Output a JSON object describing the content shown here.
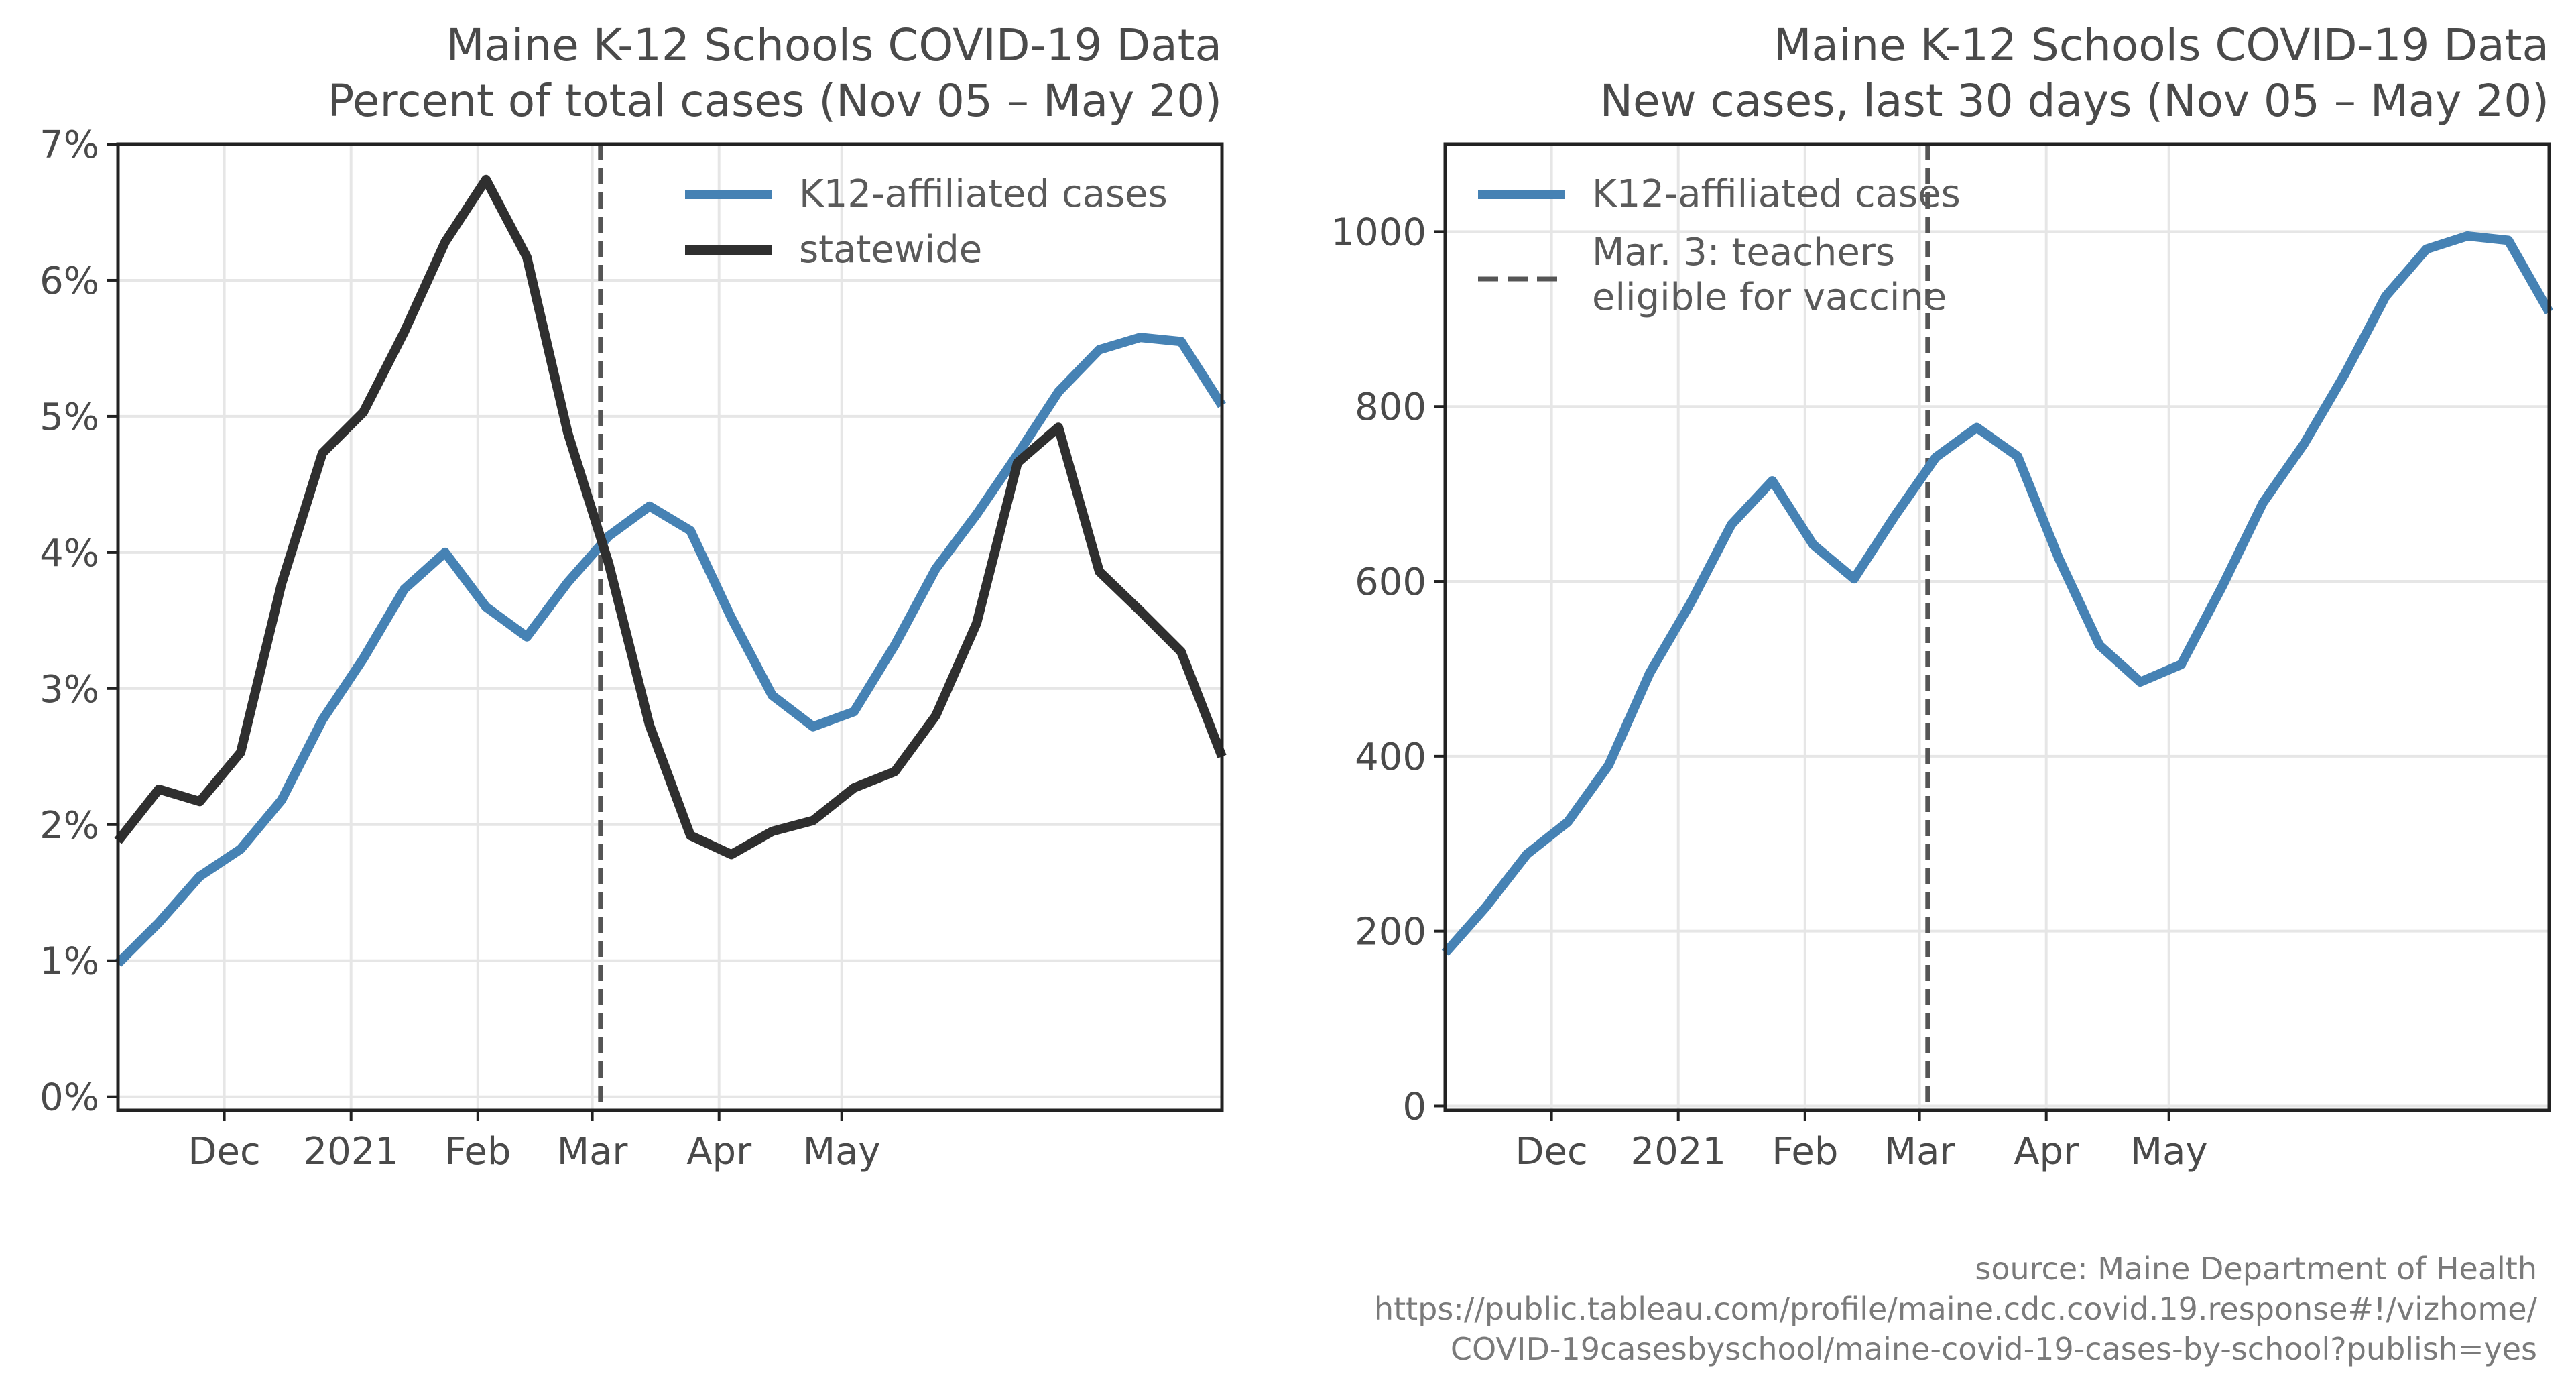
{
  "chart_data": [
    {
      "type": "line",
      "title": "Maine K-12 Schools COVID-19 Data",
      "subtitle": "Percent of total cases (Nov 05 – May 20)",
      "xlabel": "",
      "ylabel": "",
      "x_ticks": [
        "Dec",
        "2021",
        "Feb",
        "Mar",
        "Apr",
        "May"
      ],
      "y_ticks": [
        "0%",
        "1%",
        "2%",
        "3%",
        "4%",
        "5%",
        "6%",
        "7%"
      ],
      "ylim": [
        -0.1,
        7.0
      ],
      "grid": true,
      "legend_position": "top-right",
      "reference_line": {
        "date": "2021-03-03"
      },
      "series": [
        {
          "name": "K12-affiliated cases",
          "color": "#4682b4",
          "points": [
            [
              "2020-11-05",
              0.98
            ],
            [
              "2020-11-15",
              1.28
            ],
            [
              "2020-11-25",
              1.62
            ],
            [
              "2020-12-05",
              1.82
            ],
            [
              "2020-12-15",
              2.18
            ],
            [
              "2020-12-25",
              2.77
            ],
            [
              "2021-01-04",
              3.22
            ],
            [
              "2021-01-14",
              3.73
            ],
            [
              "2021-01-24",
              4.0
            ],
            [
              "2021-02-03",
              3.6
            ],
            [
              "2021-02-13",
              3.38
            ],
            [
              "2021-02-23",
              3.78
            ],
            [
              "2021-03-05",
              4.12
            ],
            [
              "2021-03-15",
              4.34
            ],
            [
              "2021-03-25",
              4.16
            ],
            [
              "2021-04-04",
              3.52
            ],
            [
              "2021-04-14",
              2.95
            ],
            [
              "2021-04-24",
              2.72
            ],
            [
              "2021-05-04",
              2.83
            ],
            [
              "2021-05-14",
              3.32
            ],
            [
              "2021-05-24",
              3.88
            ],
            [
              "2021-06-03",
              4.28
            ],
            [
              "2021-06-13",
              4.72
            ],
            [
              "2021-06-23",
              5.18
            ],
            [
              "2021-07-03",
              5.49
            ],
            [
              "2021-07-13",
              5.58
            ],
            [
              "2021-07-23",
              5.55
            ],
            [
              "2021-08-02",
              5.08
            ]
          ]
        },
        {
          "name": "statewide",
          "color": "#2f2f2f",
          "points": [
            [
              "2020-11-05",
              1.88
            ],
            [
              "2020-11-15",
              2.26
            ],
            [
              "2020-11-25",
              2.17
            ],
            [
              "2020-12-05",
              2.53
            ],
            [
              "2020-12-15",
              3.77
            ],
            [
              "2020-12-25",
              4.73
            ],
            [
              "2021-01-04",
              5.03
            ],
            [
              "2021-01-14",
              5.62
            ],
            [
              "2021-01-24",
              6.28
            ],
            [
              "2021-02-03",
              6.74
            ],
            [
              "2021-02-13",
              6.17
            ],
            [
              "2021-02-23",
              4.88
            ],
            [
              "2021-03-05",
              3.92
            ],
            [
              "2021-03-15",
              2.73
            ],
            [
              "2021-03-25",
              1.92
            ],
            [
              "2021-04-04",
              1.78
            ],
            [
              "2021-04-14",
              1.95
            ],
            [
              "2021-04-24",
              2.03
            ],
            [
              "2021-05-04",
              2.27
            ],
            [
              "2021-05-14",
              2.39
            ],
            [
              "2021-05-24",
              2.8
            ],
            [
              "2021-06-03",
              3.48
            ],
            [
              "2021-06-13",
              4.66
            ],
            [
              "2021-06-23",
              4.92
            ],
            [
              "2021-07-03",
              3.86
            ],
            [
              "2021-07-13",
              3.57
            ],
            [
              "2021-07-23",
              3.27
            ],
            [
              "2021-08-02",
              2.5
            ]
          ]
        }
      ]
    },
    {
      "type": "line",
      "title": "Maine K-12 Schools COVID-19 Data",
      "subtitle": "New cases, last 30 days (Nov 05 – May 20)",
      "xlabel": "",
      "ylabel": "",
      "x_ticks": [
        "Dec",
        "2021",
        "Feb",
        "Mar",
        "Apr",
        "May"
      ],
      "y_ticks": [
        "0",
        "200",
        "400",
        "600",
        "800",
        "1000"
      ],
      "ylim": [
        -5,
        1100
      ],
      "grid": true,
      "legend_position": "top-left",
      "series": [
        {
          "name": "K12-affiliated cases",
          "color": "#4682b4",
          "points": [
            [
              "2020-11-05",
              175
            ],
            [
              "2020-11-15",
              228
            ],
            [
              "2020-11-25",
              288
            ],
            [
              "2020-12-05",
              325
            ],
            [
              "2020-12-15",
              390
            ],
            [
              "2020-12-25",
              495
            ],
            [
              "2021-01-04",
              575
            ],
            [
              "2021-01-14",
              665
            ],
            [
              "2021-01-24",
              715
            ],
            [
              "2021-02-03",
              642
            ],
            [
              "2021-02-13",
              603
            ],
            [
              "2021-02-23",
              675
            ],
            [
              "2021-03-05",
              742
            ],
            [
              "2021-03-15",
              776
            ],
            [
              "2021-03-25",
              743
            ],
            [
              "2021-04-04",
              627
            ],
            [
              "2021-04-14",
              527
            ],
            [
              "2021-04-24",
              485
            ],
            [
              "2021-05-04",
              505
            ],
            [
              "2021-05-14",
              594
            ],
            [
              "2021-05-24",
              690
            ],
            [
              "2021-06-03",
              757
            ],
            [
              "2021-06-13",
              837
            ],
            [
              "2021-06-23",
              926
            ],
            [
              "2021-07-03",
              980
            ],
            [
              "2021-07-13",
              995
            ],
            [
              "2021-07-23",
              990
            ],
            [
              "2021-08-02",
              908
            ]
          ]
        },
        {
          "name": "Mar. 3: teachers eligible for vaccine",
          "color": "#555555",
          "style": "dashed",
          "reference_line": {
            "date": "2021-03-03"
          }
        }
      ]
    }
  ],
  "source": {
    "line1": "source: Maine Department of Health",
    "line2": "https://public.tableau.com/profile/maine.cdc.covid.19.response#!/vizhome/",
    "line3": "COVID-19casesbyschool/maine-covid-19-cases-by-school?publish=yes"
  }
}
